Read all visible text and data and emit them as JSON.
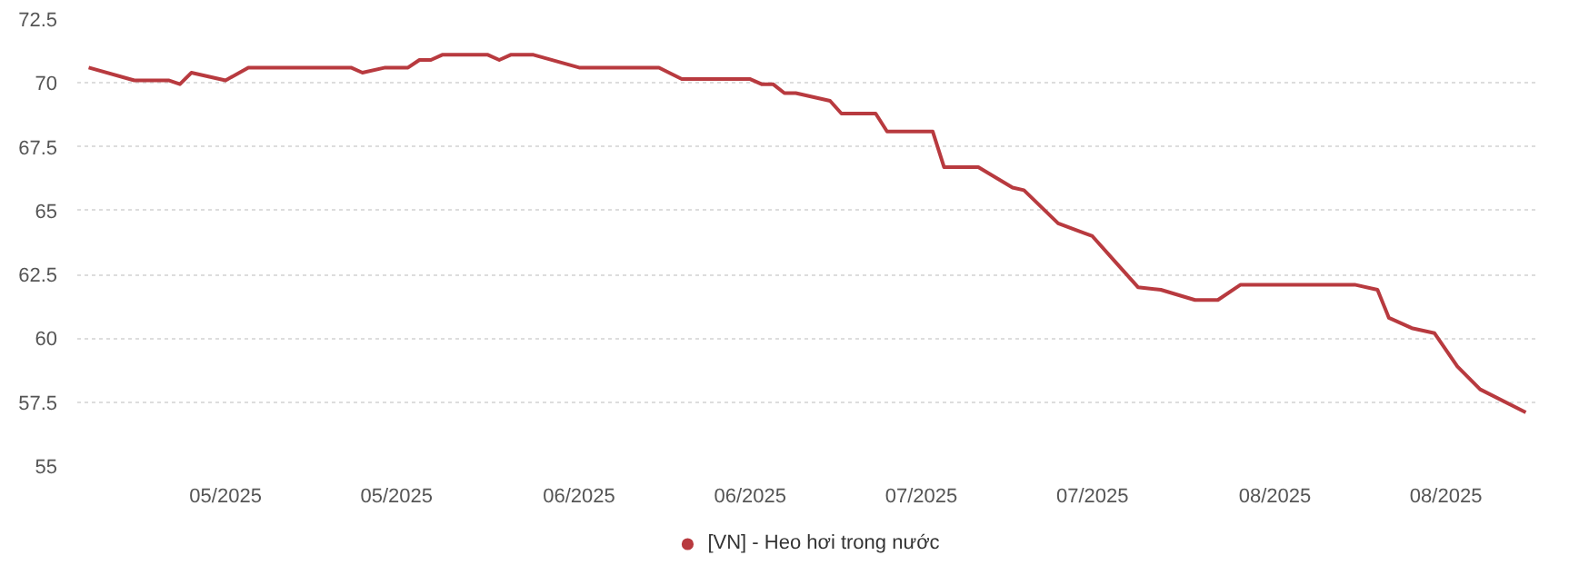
{
  "chart_data": {
    "type": "line",
    "x": [
      "2025-04-19",
      "2025-04-23",
      "2025-04-26",
      "2025-04-27",
      "2025-04-28",
      "2025-05-01",
      "2025-05-03",
      "2025-05-12",
      "2025-05-13",
      "2025-05-15",
      "2025-05-17",
      "2025-05-18",
      "2025-05-19",
      "2025-05-20",
      "2025-05-24",
      "2025-05-25",
      "2025-05-26",
      "2025-05-28",
      "2025-06-01",
      "2025-06-08",
      "2025-06-10",
      "2025-06-16",
      "2025-06-17",
      "2025-06-18",
      "2025-06-19",
      "2025-06-20",
      "2025-06-23",
      "2025-06-24",
      "2025-06-27",
      "2025-06-28",
      "2025-07-02",
      "2025-07-03",
      "2025-07-06",
      "2025-07-09",
      "2025-07-10",
      "2025-07-13",
      "2025-07-16",
      "2025-07-18",
      "2025-07-20",
      "2025-07-22",
      "2025-07-25",
      "2025-07-27",
      "2025-07-29",
      "2025-08-08",
      "2025-08-10",
      "2025-08-11",
      "2025-08-13",
      "2025-08-15",
      "2025-08-17",
      "2025-08-19",
      "2025-08-23"
    ],
    "series": [
      {
        "name": "[VN] - Heo hơi trong nước",
        "color": "#b83a3f",
        "values": [
          70.6,
          70.1,
          70.1,
          69.95,
          70.4,
          70.1,
          70.6,
          70.6,
          70.4,
          70.6,
          70.6,
          70.9,
          70.9,
          71.1,
          71.1,
          70.9,
          71.1,
          71.1,
          70.6,
          70.6,
          70.15,
          70.15,
          69.95,
          69.95,
          69.6,
          69.6,
          69.3,
          68.8,
          68.8,
          68.1,
          68.1,
          66.7,
          66.7,
          65.9,
          65.8,
          64.5,
          64.0,
          63.0,
          62.0,
          61.9,
          61.5,
          61.5,
          62.1,
          62.1,
          61.9,
          60.8,
          60.4,
          60.2,
          58.9,
          58.0,
          57.1
        ]
      }
    ],
    "xlim": [
      "2025-04-18",
      "2025-08-24"
    ],
    "xticks": [
      {
        "value": "2025-05-01",
        "label": "05/2025"
      },
      {
        "value": "2025-05-16",
        "label": "05/2025"
      },
      {
        "value": "2025-06-01",
        "label": "06/2025"
      },
      {
        "value": "2025-06-16",
        "label": "06/2025"
      },
      {
        "value": "2025-07-01",
        "label": "07/2025"
      },
      {
        "value": "2025-07-16",
        "label": "07/2025"
      },
      {
        "value": "2025-08-01",
        "label": "08/2025"
      },
      {
        "value": "2025-08-16",
        "label": "08/2025"
      }
    ],
    "ylim": [
      55,
      72.5
    ],
    "yticks": [
      55,
      57.5,
      60,
      62.5,
      65,
      67.5,
      70,
      72.5
    ],
    "grid": "y",
    "legend": "bottom",
    "marker": "none",
    "line_style": "solid"
  }
}
